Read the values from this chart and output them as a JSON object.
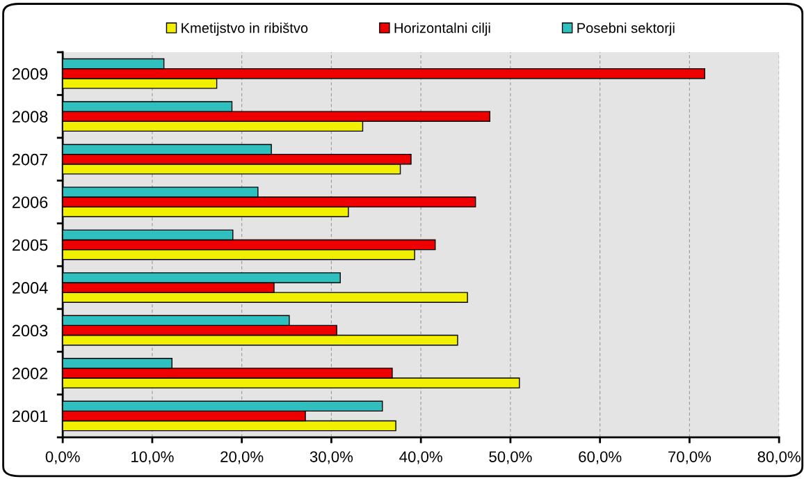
{
  "chart_data": {
    "type": "bar",
    "orientation": "horizontal",
    "categories": [
      "2009",
      "2008",
      "2007",
      "2006",
      "2005",
      "2004",
      "2003",
      "2002",
      "2001"
    ],
    "series": [
      {
        "name": "Kmetijstvo in ribištvo",
        "color": "#f0f000",
        "values": [
          17.2,
          33.5,
          37.7,
          31.9,
          39.3,
          45.2,
          44.1,
          51.0,
          37.2
        ]
      },
      {
        "name": "Horizontalni cilji",
        "color": "#ee0000",
        "values": [
          71.7,
          47.7,
          38.9,
          46.1,
          41.6,
          23.6,
          30.6,
          36.8,
          27.1
        ]
      },
      {
        "name": "Posebni sektorji",
        "color": "#2fbfbf",
        "values": [
          11.3,
          18.9,
          23.3,
          21.8,
          19.0,
          31.0,
          25.3,
          12.2,
          35.7
        ]
      }
    ],
    "xlim": [
      0,
      80
    ],
    "xticks": [
      {
        "value": 0,
        "label": "0,0%"
      },
      {
        "value": 10,
        "label": "10,0%"
      },
      {
        "value": 20,
        "label": "20,0%"
      },
      {
        "value": 30,
        "label": "30,0%"
      },
      {
        "value": 40,
        "label": "40,0%"
      },
      {
        "value": 50,
        "label": "50,0%"
      },
      {
        "value": 60,
        "label": "60,0%"
      },
      {
        "value": 70,
        "label": "70,0%"
      },
      {
        "value": 80,
        "label": "80,0%"
      }
    ],
    "grid": "x",
    "legend": "top"
  }
}
